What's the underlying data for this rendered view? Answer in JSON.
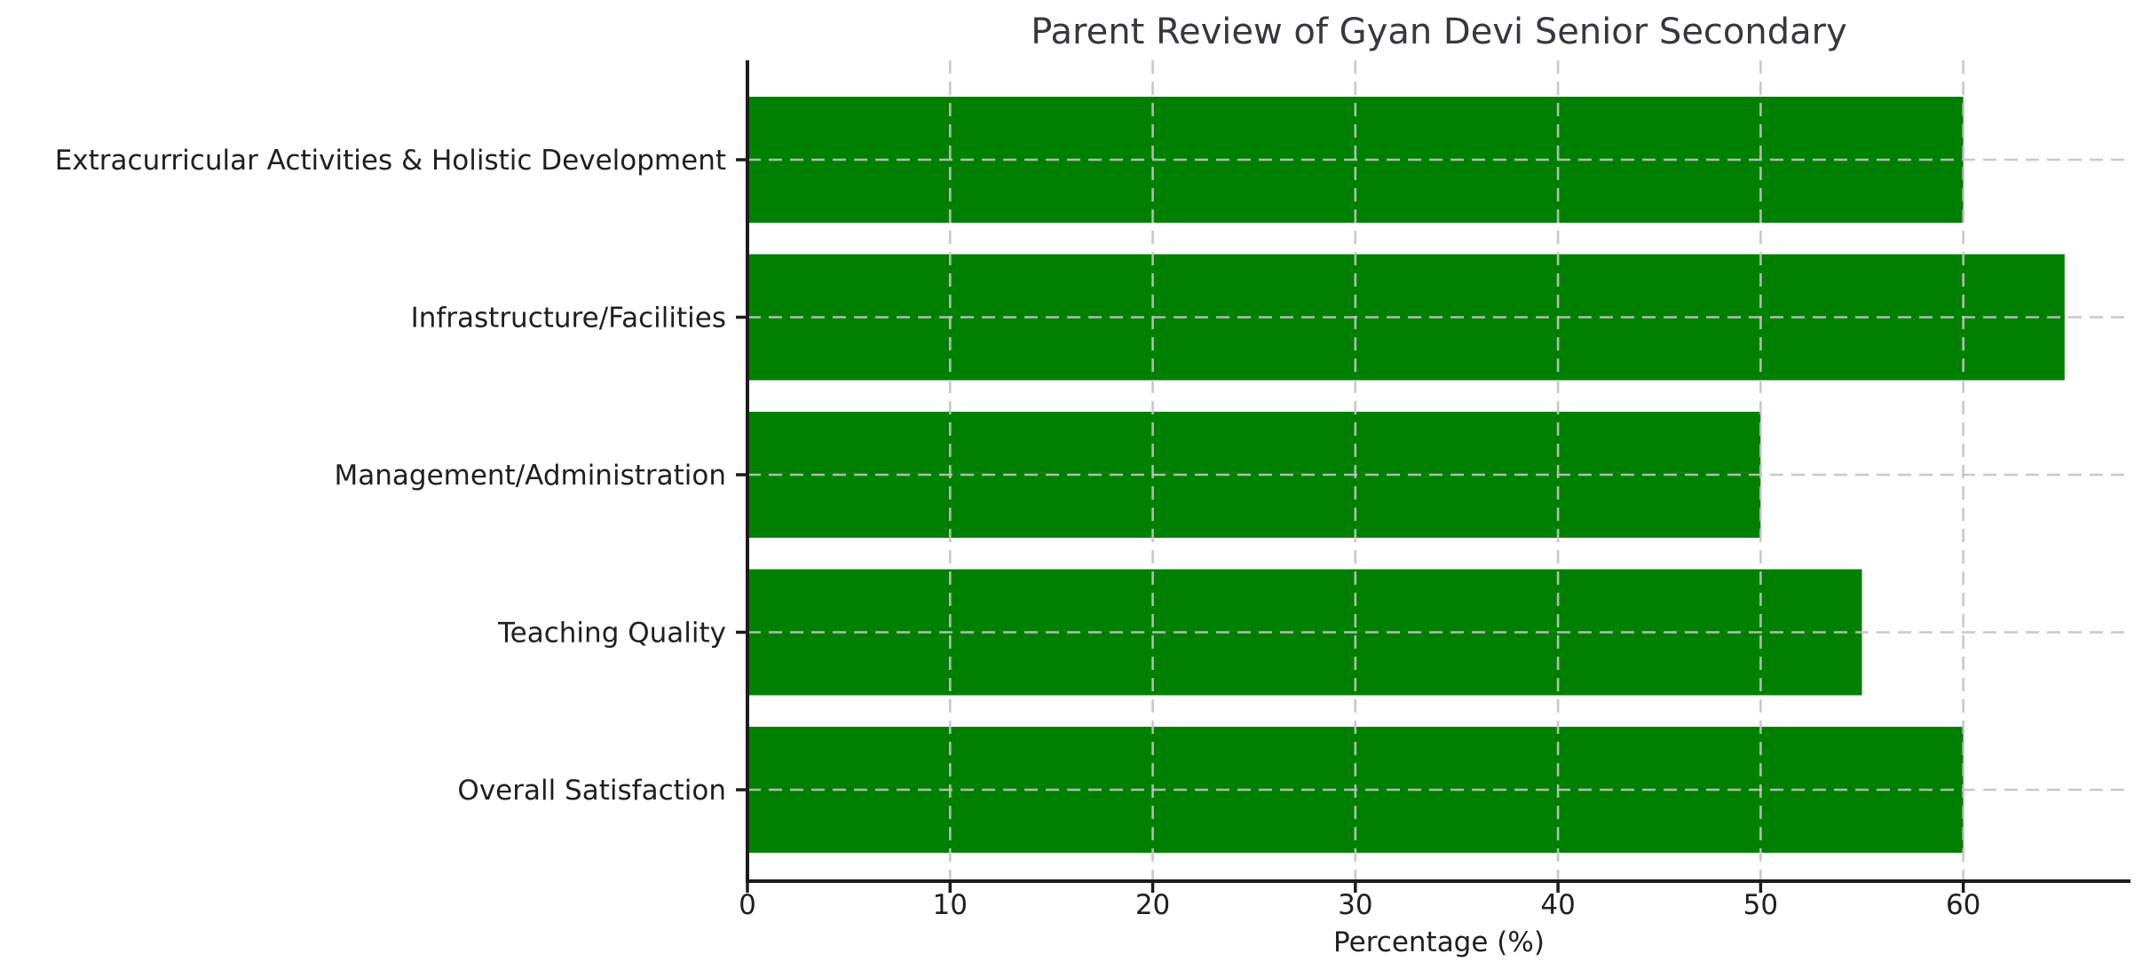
{
  "chart_data": {
    "type": "bar",
    "orientation": "horizontal",
    "title": "Parent Review of Gyan Devi Senior Secondary",
    "xlabel": "Percentage (%)",
    "ylabel": "",
    "categories": [
      "Extracurricular Activities & Holistic Development",
      "Infrastructure/Facilities",
      "Management/Administration",
      "Teaching Quality",
      "Overall Satisfaction"
    ],
    "values": [
      60,
      65,
      50,
      55,
      60
    ],
    "xticks": [
      0,
      10,
      20,
      30,
      40,
      50,
      60
    ],
    "xlim": [
      0,
      68.25
    ],
    "bar_color": "#008000",
    "background_color": "#ffffff",
    "grid": "dashed light-gray gridlines on both axes, drawn over bars",
    "legend_position": "none"
  }
}
